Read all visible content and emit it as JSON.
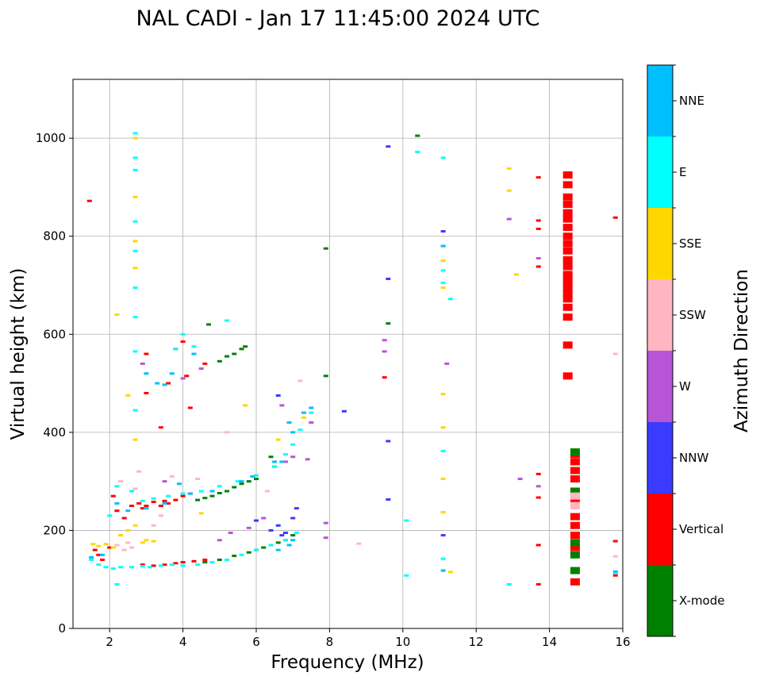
{
  "chart_data": {
    "type": "scatter",
    "title": "NAL CADI - Jan 17 11:45:00 2024 UTC",
    "xlabel": "Frequency (MHz)",
    "ylabel": "Virtual height (km)",
    "xlim": [
      1,
      16
    ],
    "ylim": [
      0,
      1120
    ],
    "xticks": [
      2,
      4,
      6,
      8,
      10,
      12,
      14,
      16
    ],
    "yticks": [
      0,
      200,
      400,
      600,
      800,
      1000
    ],
    "grid": true,
    "colorbar": {
      "label": "Azimuth Direction",
      "categories": [
        {
          "name": "X-mode",
          "color": "#008000"
        },
        {
          "name": "Vertical",
          "color": "#ff0000"
        },
        {
          "name": "NNW",
          "color": "#3b3bff"
        },
        {
          "name": "W",
          "color": "#b855d6"
        },
        {
          "name": "SSW",
          "color": "#ffb6c1"
        },
        {
          "name": "SSE",
          "color": "#ffd700"
        },
        {
          "name": "E",
          "color": "#00ffff"
        },
        {
          "name": "NNE",
          "color": "#00bfff"
        }
      ]
    },
    "series": [
      {
        "name": "Vertical",
        "points": [
          [
            1.45,
            872
          ],
          [
            1.6,
            160
          ],
          [
            1.7,
            150
          ],
          [
            1.8,
            140
          ],
          [
            2.0,
            165
          ],
          [
            2.1,
            270
          ],
          [
            2.2,
            240
          ],
          [
            2.4,
            225
          ],
          [
            2.6,
            250
          ],
          [
            2.8,
            255
          ],
          [
            2.9,
            245
          ],
          [
            3.0,
            250
          ],
          [
            3.2,
            258
          ],
          [
            3.4,
            250
          ],
          [
            3.5,
            260
          ],
          [
            3.6,
            255
          ],
          [
            3.8,
            262
          ],
          [
            4.0,
            270
          ],
          [
            4.2,
            275
          ],
          [
            3.0,
            480
          ],
          [
            3.6,
            500
          ],
          [
            4.1,
            515
          ],
          [
            4.0,
            585
          ],
          [
            4.2,
            450
          ],
          [
            3.8,
            570
          ],
          [
            2.9,
            130
          ],
          [
            3.2,
            128
          ],
          [
            3.5,
            130
          ],
          [
            3.8,
            133
          ],
          [
            4.0,
            135
          ],
          [
            4.3,
            137
          ],
          [
            4.6,
            140
          ],
          [
            3.0,
            560
          ],
          [
            3.4,
            410
          ],
          [
            4.6,
            540
          ],
          [
            9.5,
            512
          ],
          [
            13.7,
            920
          ],
          [
            13.7,
            832
          ],
          [
            13.7,
            815
          ],
          [
            13.7,
            738
          ],
          [
            13.7,
            315
          ],
          [
            13.7,
            267
          ],
          [
            13.7,
            170
          ],
          [
            13.7,
            90
          ],
          [
            14.5,
            925
          ],
          [
            14.5,
            905
          ],
          [
            14.5,
            880
          ],
          [
            14.5,
            865
          ],
          [
            14.5,
            848
          ],
          [
            14.5,
            835
          ],
          [
            14.5,
            818
          ],
          [
            14.5,
            800
          ],
          [
            14.5,
            785
          ],
          [
            14.5,
            770
          ],
          [
            14.5,
            752
          ],
          [
            14.5,
            738
          ],
          [
            14.5,
            722
          ],
          [
            14.5,
            708
          ],
          [
            14.5,
            695
          ],
          [
            14.5,
            683
          ],
          [
            14.5,
            672
          ],
          [
            14.5,
            655
          ],
          [
            14.5,
            635
          ],
          [
            14.5,
            578
          ],
          [
            14.5,
            515
          ],
          [
            14.7,
            355
          ],
          [
            14.7,
            340
          ],
          [
            14.7,
            322
          ],
          [
            14.7,
            305
          ],
          [
            14.7,
            265
          ],
          [
            14.7,
            228
          ],
          [
            14.7,
            210
          ],
          [
            14.7,
            190
          ],
          [
            14.7,
            165
          ],
          [
            14.7,
            95
          ],
          [
            15.8,
            838
          ],
          [
            15.8,
            178
          ],
          [
            15.8,
            108
          ]
        ]
      },
      {
        "name": "X-mode",
        "points": [
          [
            4.4,
            262
          ],
          [
            4.6,
            266
          ],
          [
            4.8,
            270
          ],
          [
            5.0,
            276
          ],
          [
            5.2,
            280
          ],
          [
            5.4,
            288
          ],
          [
            5.6,
            295
          ],
          [
            5.8,
            300
          ],
          [
            6.0,
            305
          ],
          [
            4.6,
            135
          ],
          [
            5.0,
            140
          ],
          [
            5.4,
            148
          ],
          [
            5.8,
            155
          ],
          [
            6.0,
            160
          ],
          [
            6.2,
            165
          ],
          [
            6.4,
            170
          ],
          [
            6.6,
            175
          ],
          [
            6.8,
            180
          ],
          [
            7.0,
            190
          ],
          [
            5.0,
            545
          ],
          [
            5.2,
            555
          ],
          [
            5.4,
            560
          ],
          [
            5.6,
            570
          ],
          [
            5.7,
            575
          ],
          [
            4.7,
            620
          ],
          [
            6.4,
            350
          ],
          [
            6.5,
            330
          ],
          [
            7.9,
            775
          ],
          [
            7.9,
            515
          ],
          [
            9.6,
            622
          ],
          [
            10.4,
            1005
          ],
          [
            14.7,
            118
          ],
          [
            14.7,
            150
          ],
          [
            14.7,
            175
          ],
          [
            14.7,
            280
          ],
          [
            14.7,
            360
          ]
        ]
      },
      {
        "name": "NNW",
        "points": [
          [
            6.0,
            220
          ],
          [
            6.4,
            200
          ],
          [
            6.6,
            210
          ],
          [
            6.8,
            195
          ],
          [
            7.0,
            225
          ],
          [
            7.1,
            245
          ],
          [
            6.7,
            190
          ],
          [
            6.6,
            475
          ],
          [
            8.4,
            443
          ],
          [
            9.6,
            983
          ],
          [
            9.6,
            713
          ],
          [
            9.6,
            382
          ],
          [
            9.6,
            263
          ],
          [
            11.1,
            810
          ],
          [
            11.1,
            190
          ]
        ]
      },
      {
        "name": "W",
        "points": [
          [
            2.9,
            540
          ],
          [
            3.5,
            300
          ],
          [
            4.0,
            510
          ],
          [
            4.5,
            530
          ],
          [
            5.0,
            180
          ],
          [
            5.3,
            195
          ],
          [
            5.8,
            205
          ],
          [
            6.2,
            225
          ],
          [
            6.7,
            455
          ],
          [
            6.8,
            340
          ],
          [
            7.0,
            350
          ],
          [
            7.4,
            345
          ],
          [
            7.5,
            420
          ],
          [
            7.9,
            215
          ],
          [
            7.9,
            185
          ],
          [
            9.5,
            588
          ],
          [
            9.5,
            565
          ],
          [
            11.2,
            540
          ],
          [
            12.9,
            835
          ],
          [
            13.2,
            305
          ],
          [
            13.7,
            755
          ],
          [
            13.7,
            290
          ]
        ]
      },
      {
        "name": "SSW",
        "points": [
          [
            2.2,
            170
          ],
          [
            2.4,
            160
          ],
          [
            2.5,
            175
          ],
          [
            2.6,
            165
          ],
          [
            2.3,
            300
          ],
          [
            2.7,
            285
          ],
          [
            2.8,
            320
          ],
          [
            3.2,
            210
          ],
          [
            3.4,
            230
          ],
          [
            3.7,
            310
          ],
          [
            4.4,
            305
          ],
          [
            5.2,
            400
          ],
          [
            6.3,
            280
          ],
          [
            7.2,
            505
          ],
          [
            8.8,
            173
          ],
          [
            14.7,
            250
          ],
          [
            14.7,
            270
          ],
          [
            15.8,
            560
          ],
          [
            15.8,
            147
          ]
        ]
      },
      {
        "name": "SSE",
        "points": [
          [
            1.55,
            172
          ],
          [
            1.7,
            168
          ],
          [
            1.9,
            172
          ],
          [
            2.1,
            165
          ],
          [
            2.3,
            190
          ],
          [
            2.5,
            200
          ],
          [
            2.7,
            210
          ],
          [
            2.9,
            175
          ],
          [
            3.0,
            180
          ],
          [
            3.2,
            178
          ],
          [
            2.7,
            1000
          ],
          [
            2.7,
            880
          ],
          [
            2.7,
            790
          ],
          [
            2.7,
            735
          ],
          [
            2.2,
            640
          ],
          [
            2.5,
            475
          ],
          [
            2.7,
            385
          ],
          [
            4.5,
            235
          ],
          [
            5.7,
            455
          ],
          [
            6.6,
            385
          ],
          [
            7.3,
            430
          ],
          [
            11.1,
            750
          ],
          [
            11.1,
            695
          ],
          [
            11.1,
            478
          ],
          [
            11.1,
            410
          ],
          [
            11.1,
            305
          ],
          [
            11.1,
            237
          ],
          [
            11.3,
            115
          ],
          [
            12.9,
            938
          ],
          [
            12.9,
            893
          ],
          [
            13.1,
            722
          ]
        ]
      },
      {
        "name": "E",
        "points": [
          [
            1.5,
            140
          ],
          [
            1.7,
            130
          ],
          [
            1.9,
            125
          ],
          [
            2.1,
            122
          ],
          [
            2.3,
            125
          ],
          [
            2.6,
            125
          ],
          [
            2.9,
            127
          ],
          [
            3.1,
            125
          ],
          [
            3.4,
            128
          ],
          [
            3.7,
            130
          ],
          [
            4.0,
            128
          ],
          [
            4.4,
            130
          ],
          [
            4.8,
            135
          ],
          [
            5.2,
            140
          ],
          [
            5.6,
            150
          ],
          [
            6.0,
            160
          ],
          [
            6.4,
            170
          ],
          [
            6.8,
            180
          ],
          [
            7.1,
            195
          ],
          [
            2.0,
            230
          ],
          [
            2.2,
            290
          ],
          [
            2.6,
            280
          ],
          [
            2.9,
            260
          ],
          [
            3.2,
            265
          ],
          [
            3.6,
            270
          ],
          [
            4.0,
            275
          ],
          [
            4.5,
            280
          ],
          [
            5.0,
            290
          ],
          [
            5.5,
            300
          ],
          [
            6.0,
            312
          ],
          [
            6.5,
            330
          ],
          [
            6.8,
            355
          ],
          [
            7.0,
            375
          ],
          [
            7.2,
            405
          ],
          [
            7.5,
            440
          ],
          [
            2.7,
            1010
          ],
          [
            2.7,
            960
          ],
          [
            2.7,
            935
          ],
          [
            2.7,
            830
          ],
          [
            2.7,
            770
          ],
          [
            2.7,
            695
          ],
          [
            2.7,
            635
          ],
          [
            2.7,
            565
          ],
          [
            2.7,
            445
          ],
          [
            3.8,
            570
          ],
          [
            4.3,
            575
          ],
          [
            4.0,
            600
          ],
          [
            5.2,
            628
          ],
          [
            2.2,
            90
          ],
          [
            10.1,
            220
          ],
          [
            10.1,
            108
          ],
          [
            10.4,
            972
          ],
          [
            11.1,
            960
          ],
          [
            11.1,
            780
          ],
          [
            11.1,
            730
          ],
          [
            11.1,
            705
          ],
          [
            11.1,
            362
          ],
          [
            11.1,
            142
          ],
          [
            11.3,
            672
          ],
          [
            12.9,
            90
          ],
          [
            15.8,
            113
          ]
        ]
      },
      {
        "name": "NNE",
        "points": [
          [
            1.5,
            145
          ],
          [
            1.8,
            150
          ],
          [
            2.2,
            255
          ],
          [
            2.5,
            240
          ],
          [
            3.0,
            245
          ],
          [
            3.5,
            255
          ],
          [
            3.9,
            295
          ],
          [
            4.2,
            275
          ],
          [
            4.8,
            280
          ],
          [
            5.6,
            300
          ],
          [
            5.9,
            310
          ],
          [
            6.5,
            340
          ],
          [
            6.7,
            340
          ],
          [
            6.9,
            420
          ],
          [
            7.0,
            400
          ],
          [
            7.3,
            440
          ],
          [
            7.5,
            450
          ],
          [
            6.6,
            160
          ],
          [
            6.9,
            170
          ],
          [
            7.0,
            180
          ],
          [
            3.0,
            520
          ],
          [
            3.3,
            500
          ],
          [
            3.5,
            497
          ],
          [
            3.7,
            520
          ],
          [
            4.3,
            560
          ],
          [
            11.1,
            780
          ],
          [
            11.1,
            118
          ],
          [
            15.8,
            116
          ]
        ]
      }
    ]
  }
}
